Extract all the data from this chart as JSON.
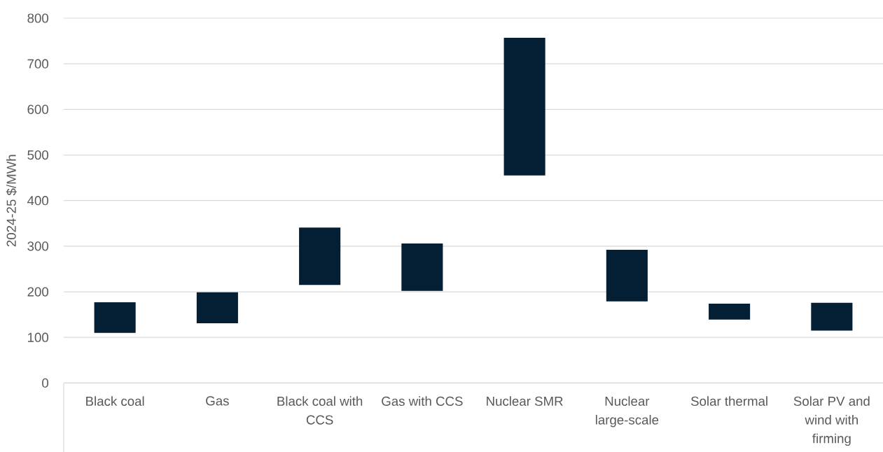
{
  "chart_data": {
    "type": "bar",
    "ylabel": "2024-25 $/MWh",
    "categories": [
      "Black coal",
      "Gas",
      "Black coal with CCS",
      "Gas with CCS",
      "Nuclear SMR",
      "Nuclear large-scale",
      "Solar thermal",
      "Solar PV and wind with firming"
    ],
    "base": [
      110,
      131,
      215,
      202,
      455,
      179,
      139,
      115
    ],
    "values": [
      67,
      68,
      126,
      104,
      302,
      113,
      35,
      61
    ],
    "color": "#041e33",
    "ylim": [
      0,
      800
    ],
    "yticks": [
      0,
      100,
      200,
      300,
      400,
      500,
      600,
      700,
      800
    ],
    "grid": "y"
  }
}
